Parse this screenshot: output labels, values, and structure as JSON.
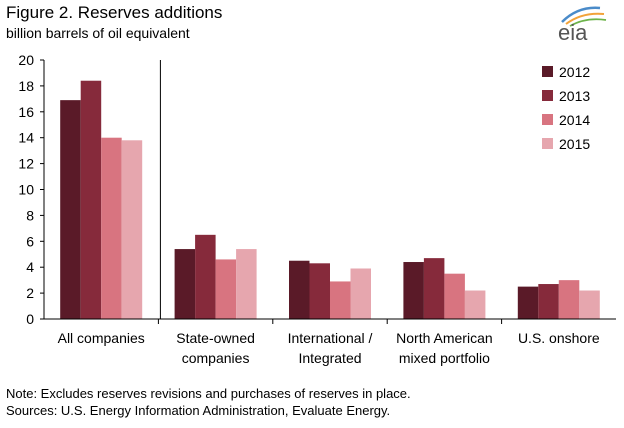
{
  "header": {
    "title": "Figure 2. Reserves additions",
    "subtitle": "billion barrels of oil equivalent",
    "logo_text": "eia",
    "logo_icon": "eia-logo-icon"
  },
  "footer": {
    "note": "Note: Excludes reserves revisions and purchases of reserves in place.",
    "sources": "Sources: U.S. Energy Information Administration, Evaluate Energy."
  },
  "chart_data": {
    "type": "bar",
    "title": "Figure 2. Reserves additions",
    "subtitle": "billion barrels of oil equivalent",
    "xlabel": "",
    "ylabel": "",
    "ylim": [
      0,
      20
    ],
    "yticks": [
      0,
      2,
      4,
      6,
      8,
      10,
      12,
      14,
      16,
      18,
      20
    ],
    "grid": false,
    "legend_position": "top-right",
    "categories": [
      [
        "All companies"
      ],
      [
        "State-owned",
        "companies"
      ],
      [
        "International /",
        "Integrated"
      ],
      [
        "North American",
        "mixed portfolio"
      ],
      [
        "U.S. onshore"
      ]
    ],
    "series": [
      {
        "name": "2012",
        "color": "#5a1a28",
        "values": [
          16.9,
          5.4,
          4.5,
          4.4,
          2.5
        ]
      },
      {
        "name": "2013",
        "color": "#862a3b",
        "values": [
          18.4,
          6.5,
          4.3,
          4.7,
          2.7
        ]
      },
      {
        "name": "2014",
        "color": "#d87480",
        "values": [
          14.0,
          4.6,
          2.9,
          3.5,
          3.0
        ]
      },
      {
        "name": "2015",
        "color": "#e6a6ae",
        "values": [
          13.8,
          5.4,
          3.9,
          2.2,
          2.2
        ]
      }
    ]
  }
}
